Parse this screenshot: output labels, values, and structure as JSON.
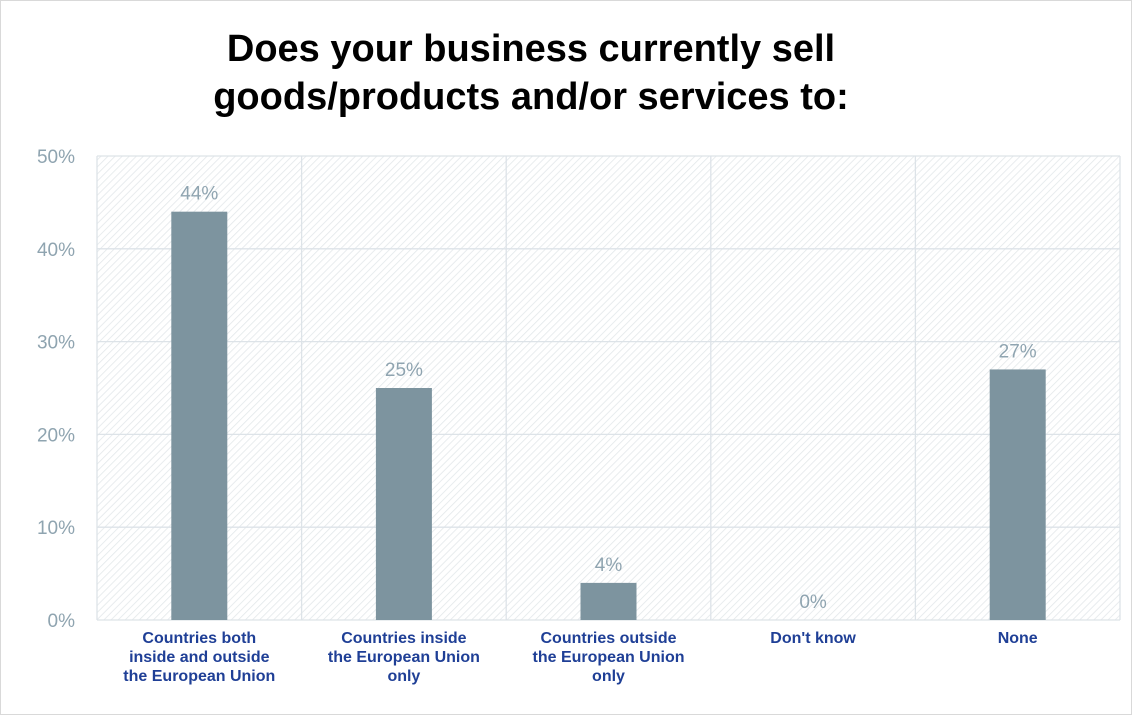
{
  "colors": {
    "bar": "#7d949f",
    "grid": "#dde3e8",
    "hatch": "#e3e7ea",
    "tick_text": "#8fa4b0",
    "category_text": "#1f3f96",
    "title_text": "#000000"
  },
  "chart_data": {
    "type": "bar",
    "title": "Does your business currently sell goods/products and/or services to:",
    "xlabel": "",
    "ylabel": "",
    "ylim": [
      0,
      50
    ],
    "yticks": [
      "0%",
      "10%",
      "20%",
      "30%",
      "40%",
      "50%"
    ],
    "grid": true,
    "categories": [
      [
        "Countries both",
        "inside and outside",
        "the European Union"
      ],
      [
        "Countries inside",
        "the European Union",
        "only"
      ],
      [
        "Countries outside",
        "the European Union",
        "only"
      ],
      [
        "Don't know"
      ],
      [
        "None"
      ]
    ],
    "values": [
      44,
      25,
      4,
      0,
      27
    ],
    "data_labels": [
      "44%",
      "25%",
      "4%",
      "0%",
      "27%"
    ]
  }
}
